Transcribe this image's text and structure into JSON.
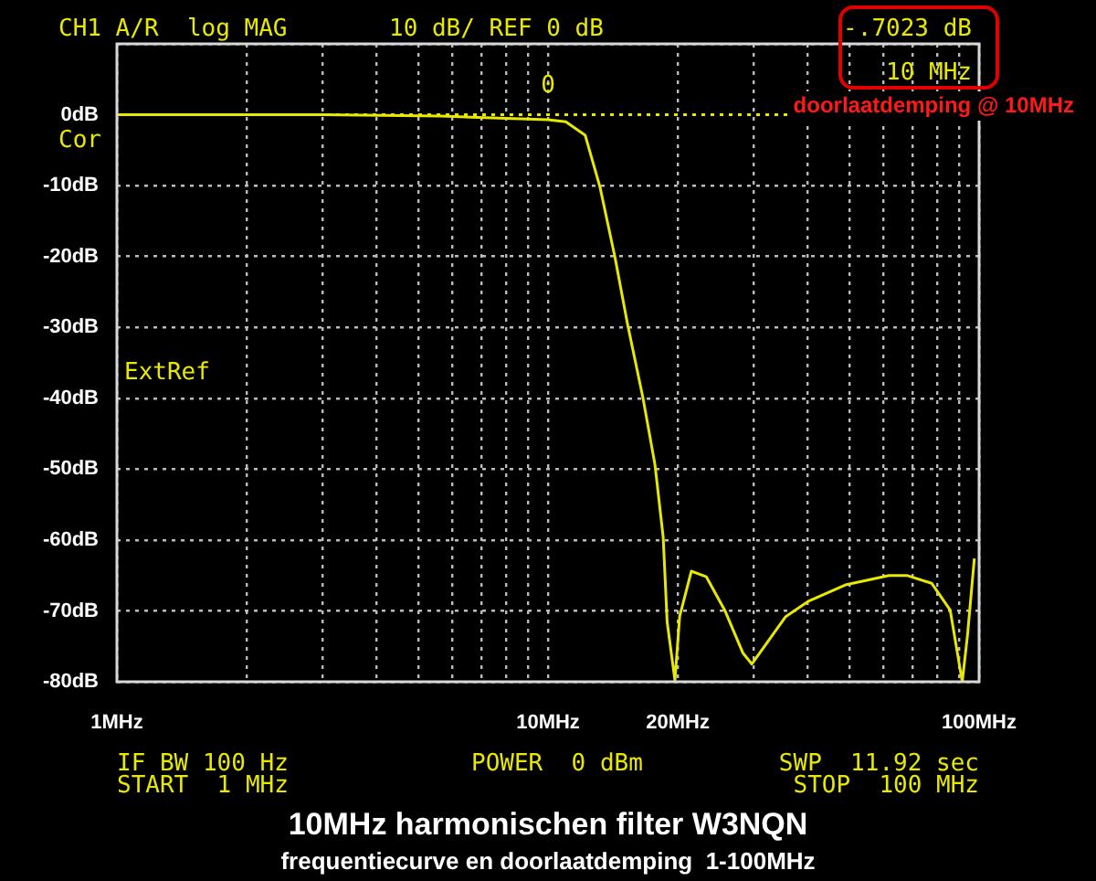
{
  "chart_data": {
    "type": "line",
    "title": "10MHz harmonischen filter W3NQN",
    "subtitle": "frequentiecurve en doorlaatdemping  1-100MHz",
    "x": [
      1,
      3,
      5.67,
      8,
      10,
      11,
      12.2,
      13.2,
      14.3,
      15.3,
      16.6,
      17.7,
      18.5,
      18.9,
      19.7,
      20.2,
      21.5,
      23.3,
      25.7,
      28.3,
      29.7,
      35.6,
      40.3,
      49.2,
      61.8,
      68,
      77.6,
      85.7,
      91.4,
      94,
      97.5
    ],
    "values": [
      0,
      0,
      -0.2,
      -0.5,
      -0.7,
      -1,
      -2.9,
      -10.2,
      -20.1,
      -29.6,
      -39.9,
      -49.3,
      -59.6,
      -71.6,
      -79.8,
      -70.8,
      -64.4,
      -65.2,
      -69.9,
      -75.9,
      -77.5,
      -70.8,
      -68.6,
      -66.3,
      -65,
      -65,
      -66.1,
      -69.9,
      -80,
      -73.4,
      -62.6
    ],
    "color": "#e8e800",
    "log": "x",
    "grid": true,
    "xlim": [
      1,
      100
    ],
    "ylim": [
      -80,
      10
    ],
    "xticks": [
      {
        "value": 1,
        "label": "1MHz"
      },
      {
        "value": 2,
        "label": null
      },
      {
        "value": 3,
        "label": null
      },
      {
        "value": 4,
        "label": null
      },
      {
        "value": 5,
        "label": null
      },
      {
        "value": 6,
        "label": null
      },
      {
        "value": 7,
        "label": null
      },
      {
        "value": 8,
        "label": null
      },
      {
        "value": 9,
        "label": null
      },
      {
        "value": 10,
        "label": "10MHz"
      },
      {
        "value": 20,
        "label": "20MHz"
      },
      {
        "value": 30,
        "label": null
      },
      {
        "value": 40,
        "label": null
      },
      {
        "value": 50,
        "label": null
      },
      {
        "value": 60,
        "label": null
      },
      {
        "value": 70,
        "label": null
      },
      {
        "value": 80,
        "label": null
      },
      {
        "value": 90,
        "label": null
      },
      {
        "value": 100,
        "label": "100MHz"
      }
    ],
    "yticks": [
      {
        "value": 10,
        "label": null
      },
      {
        "value": 0,
        "label": "0dB"
      },
      {
        "value": -10,
        "label": "-10dB"
      },
      {
        "value": -20,
        "label": "-20dB"
      },
      {
        "value": -30,
        "label": "-30dB"
      },
      {
        "value": -40,
        "label": "-40dB"
      },
      {
        "value": -50,
        "label": "-50dB"
      },
      {
        "value": -60,
        "label": "-60dB"
      },
      {
        "value": -70,
        "label": "-70dB"
      },
      {
        "value": -80,
        "label": "-80dB"
      }
    ],
    "ref_lines": [
      {
        "axis": "y",
        "value": 0,
        "color": "#e8e800",
        "line_style": "dotted"
      }
    ],
    "annotations": [
      "CH1 A/R  log MAG",
      "10 dB/ REF 0 dB",
      "-.7023 dB",
      "10 MHz",
      "doorlaatdemping @ 10MHz",
      "Cor",
      "ExtRef",
      "IF BW 100 Hz",
      "START  1 MHz",
      "POWER  0 dBm",
      "SWP  11.92 sec",
      "STOP  100 MHz",
      {
        "text": "0",
        "x": 10,
        "y": -0.7
      }
    ]
  }
}
